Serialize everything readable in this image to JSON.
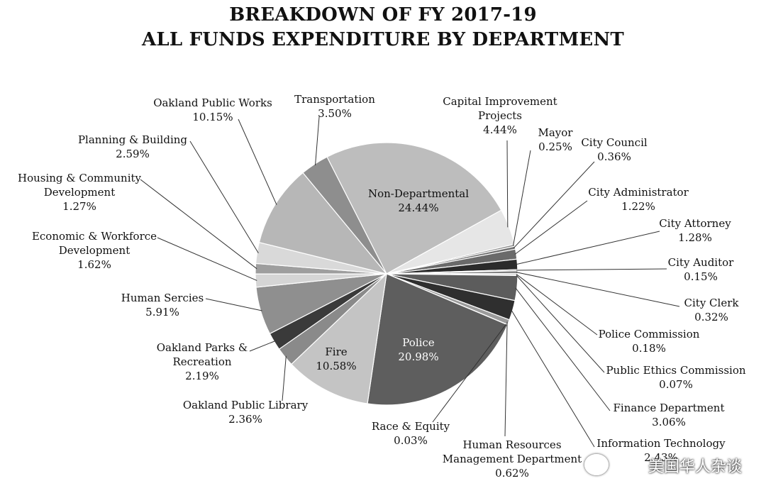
{
  "chart_data": {
    "type": "pie",
    "title": "BREAKDOWN OF FY 2017-19",
    "subtitle": "ALL FUNDS EXPENDITURE BY DEPARTMENT",
    "unit": "%",
    "slices": [
      {
        "name": "Non-Departmental",
        "value": 24.44,
        "color": "#bdbdbd",
        "label_inside": true
      },
      {
        "name": "Capital Improvement Projects",
        "value": 4.44,
        "color": "#e6e6e6"
      },
      {
        "name": "Mayor",
        "value": 0.25,
        "color": "#8c8c8c"
      },
      {
        "name": "City Council",
        "value": 0.36,
        "color": "#707070"
      },
      {
        "name": "City Administrator",
        "value": 1.22,
        "color": "#6a6a6a"
      },
      {
        "name": "City Attorney",
        "value": 1.28,
        "color": "#2b2b2b"
      },
      {
        "name": "City Auditor",
        "value": 0.15,
        "color": "#9a9a9a"
      },
      {
        "name": "City Clerk",
        "value": 0.32,
        "color": "#7a7a7a"
      },
      {
        "name": "Police Commission",
        "value": 0.18,
        "color": "#aaaaaa"
      },
      {
        "name": "Public Ethics Commission",
        "value": 0.07,
        "color": "#666666"
      },
      {
        "name": "Finance Department",
        "value": 3.06,
        "color": "#5c5c5c"
      },
      {
        "name": "Information Technology",
        "value": 2.43,
        "color": "#2f2f2f"
      },
      {
        "name": "Human Resources Management Department",
        "value": 0.62,
        "color": "#9c9c9c"
      },
      {
        "name": "Race & Equity",
        "value": 0.03,
        "color": "#bbbbbb"
      },
      {
        "name": "Police",
        "value": 20.98,
        "color": "#5e5e5e",
        "label_inside": true
      },
      {
        "name": "Fire",
        "value": 10.58,
        "color": "#c4c4c4",
        "label_inside": true
      },
      {
        "name": "Oakland Public Library",
        "value": 2.36,
        "color": "#8a8a8a"
      },
      {
        "name": "Oakland Parks & Recreation",
        "value": 2.19,
        "color": "#3a3a3a"
      },
      {
        "name": "Human Sercies",
        "value": 5.91,
        "color": "#8f8f8f"
      },
      {
        "name": "Economic & Workforce Development",
        "value": 1.62,
        "color": "#d5d5d5"
      },
      {
        "name": "Housing & Community Development",
        "value": 1.27,
        "color": "#9e9e9e"
      },
      {
        "name": "Planning & Building",
        "value": 2.59,
        "color": "#d9d9d9"
      },
      {
        "name": "Oakland Public Works",
        "value": 10.15,
        "color": "#b7b7b7"
      },
      {
        "name": "Transportation",
        "value": 3.5,
        "color": "#8e8e8e"
      }
    ],
    "labels": [
      {
        "lines": [
          "Non-Departmental",
          "24.44%"
        ]
      },
      {
        "lines": [
          "Capital Improvement",
          "Projects",
          "4.44%"
        ]
      },
      {
        "lines": [
          "Mayor",
          "0.25%"
        ]
      },
      {
        "lines": [
          "City Council",
          "0.36%"
        ]
      },
      {
        "lines": [
          "City Administrator",
          "1.22%"
        ]
      },
      {
        "lines": [
          "City Attorney",
          "1.28%"
        ]
      },
      {
        "lines": [
          "City Auditor",
          "0.15%"
        ]
      },
      {
        "lines": [
          "City Clerk",
          "0.32%"
        ]
      },
      {
        "lines": [
          "Police Commission",
          "0.18%"
        ]
      },
      {
        "lines": [
          "Public Ethics Commission",
          "0.07%"
        ]
      },
      {
        "lines": [
          "Finance Department",
          "3.06%"
        ]
      },
      {
        "lines": [
          "Information Technology",
          "2.43%"
        ]
      },
      {
        "lines": [
          "Human Resources",
          "Management Department",
          "0.62%"
        ]
      },
      {
        "lines": [
          "Race & Equity",
          "0.03%"
        ]
      },
      {
        "lines": [
          "Police",
          "20.98%"
        ]
      },
      {
        "lines": [
          "Fire",
          "10.58%"
        ]
      },
      {
        "lines": [
          "Oakland Public Library",
          "2.36%"
        ]
      },
      {
        "lines": [
          "Oakland Parks &",
          "Recreation",
          "2.19%"
        ]
      },
      {
        "lines": [
          "Human Sercies",
          "5.91%"
        ]
      },
      {
        "lines": [
          "Economic & Workforce",
          "Development",
          "1.62%"
        ]
      },
      {
        "lines": [
          "Housing & Community",
          "Development",
          "1.27%"
        ]
      },
      {
        "lines": [
          "Planning & Building",
          "2.59%"
        ]
      },
      {
        "lines": [
          "Oakland Public Works",
          "10.15%"
        ]
      },
      {
        "lines": [
          "Transportation",
          "3.50%"
        ]
      }
    ]
  },
  "watermark": "美国华人杂谈",
  "watermark_icon": "wechat-icon"
}
